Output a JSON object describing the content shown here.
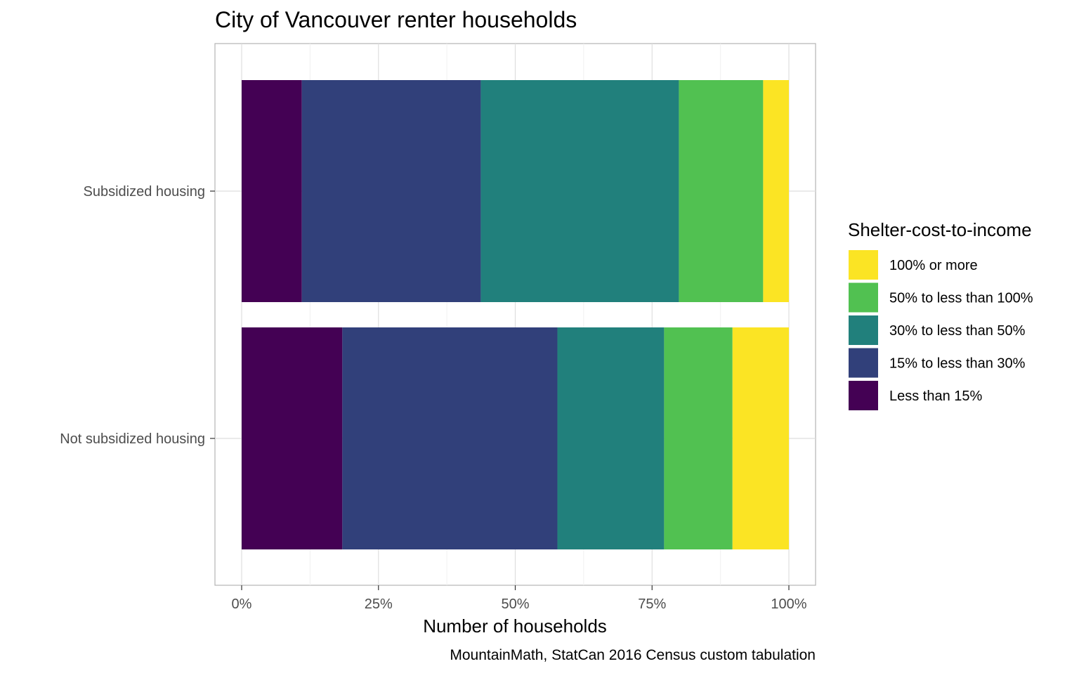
{
  "chart_data": {
    "type": "bar",
    "orientation": "horizontal",
    "stacked": true,
    "normalized": true,
    "title": "City of Vancouver renter households",
    "xlabel": "Number of households",
    "ylabel": "",
    "caption": "MountainMath, StatCan 2016 Census custom tabulation",
    "xlim": [
      0,
      100
    ],
    "x_ticks": [
      "0%",
      "25%",
      "50%",
      "75%",
      "100%"
    ],
    "x_tick_values": [
      0,
      25,
      50,
      75,
      100
    ],
    "grid": true,
    "categories": [
      "Subsidized housing",
      "Not subsidized housing"
    ],
    "legend": {
      "title": "Shelter-cost-to-income",
      "placement": "right",
      "order": [
        "100% or more",
        "50% to less than 100%",
        "30% to less than 50%",
        "15% to less than 30%",
        "Less than 15%"
      ]
    },
    "series": [
      {
        "name": "Less than 15%",
        "color": "#440154",
        "values": [
          11.0,
          18.4
        ]
      },
      {
        "name": "15% to less than 30%",
        "color": "#31407a",
        "values": [
          32.7,
          39.3
        ]
      },
      {
        "name": "30% to less than 50%",
        "color": "#21807c",
        "values": [
          36.2,
          19.5
        ]
      },
      {
        "name": "50% to less than 100%",
        "color": "#51c151",
        "values": [
          15.4,
          12.5
        ]
      },
      {
        "name": "100% or more",
        "color": "#fbe424",
        "values": [
          4.7,
          10.3
        ]
      }
    ]
  }
}
